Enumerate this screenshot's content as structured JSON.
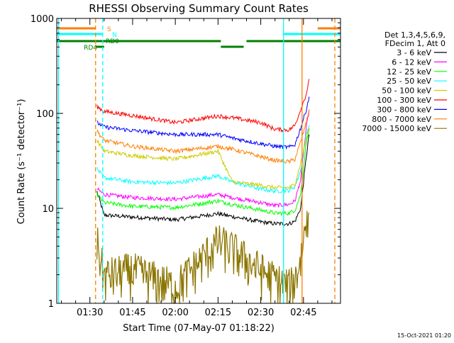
{
  "footer": {
    "date_stamp": "15-Oct-2021 01:20"
  },
  "chart_data": {
    "type": "line",
    "title": "RHESSI Observing Summary Count Rates",
    "xlabel": "Start Time (07-May-07 01:18:22)",
    "ylabel": "Count Rate (s⁻¹ detector⁻¹)",
    "y_scale": "log",
    "ylim": [
      1,
      1000
    ],
    "xlim": [
      "01:18:22",
      "02:58:00"
    ],
    "x_unit": "clock time (HH:MM)",
    "x_ticks": [
      "01:30",
      "01:45",
      "02:00",
      "02:15",
      "02:30",
      "02:45"
    ],
    "y_ticks": [
      1,
      10,
      100,
      1000
    ],
    "y_tick_labels": [
      "1",
      "10",
      "100",
      "1000"
    ],
    "grid": false,
    "legend_position": "right",
    "legend_header": [
      "Det 1,3,4,5,6,9,",
      "FDecim 1, Att 0"
    ],
    "series": [
      {
        "name": "3 - 6 keV",
        "color": "#000000",
        "x": [
          "01:32:30",
          "01:35",
          "01:45",
          "02:00",
          "02:15",
          "02:20",
          "02:30",
          "02:35",
          "02:40",
          "02:42",
          "02:44",
          "02:46",
          "02:47"
        ],
        "values": [
          15,
          8.5,
          8.1,
          7.6,
          8.8,
          8.2,
          7.2,
          6.9,
          6.9,
          7.3,
          10,
          35,
          60
        ]
      },
      {
        "name": "6 - 12 keV",
        "color": "#ff00ff",
        "x": [
          "01:32:30",
          "01:35",
          "01:45",
          "02:00",
          "02:15",
          "02:20",
          "02:30",
          "02:35",
          "02:40",
          "02:42",
          "02:44",
          "02:46",
          "02:47"
        ],
        "values": [
          16,
          14,
          13,
          12.5,
          14,
          13,
          11.5,
          10.7,
          11,
          12,
          20,
          70,
          110
        ]
      },
      {
        "name": "12 - 25 keV",
        "color": "#00ff00",
        "x": [
          "01:32:30",
          "01:35",
          "01:45",
          "02:00",
          "02:15",
          "02:20",
          "02:30",
          "02:35",
          "02:40",
          "02:42",
          "02:44",
          "02:46",
          "02:47"
        ],
        "values": [
          14,
          11.5,
          10.5,
          10.2,
          12,
          11,
          9.6,
          8.9,
          8.9,
          9.6,
          14,
          50,
          70
        ]
      },
      {
        "name": "25 - 50 keV",
        "color": "#00ffff",
        "x": [
          "01:32:30",
          "01:35",
          "01:45",
          "02:00",
          "02:15",
          "02:20",
          "02:30",
          "02:35",
          "02:40",
          "02:42",
          "02:44",
          "02:46",
          "02:47"
        ],
        "values": [
          26,
          21,
          19,
          18.5,
          22,
          19,
          16,
          15.2,
          15.5,
          17,
          25,
          60,
          75
        ]
      },
      {
        "name": "50 - 100 keV",
        "color": "#cccc00",
        "x": [
          "01:32:30",
          "01:35",
          "01:45",
          "02:00",
          "02:15",
          "02:20",
          "02:30",
          "02:35",
          "02:40",
          "02:42",
          "02:44",
          "02:46",
          "02:47"
        ],
        "values": [
          52,
          40,
          36,
          33,
          40,
          19,
          17.5,
          16.5,
          16.5,
          18,
          30,
          55,
          70
        ]
      },
      {
        "name": "100 - 300 keV",
        "color": "#ff0000",
        "x": [
          "01:32:30",
          "01:35",
          "01:45",
          "02:00",
          "02:15",
          "02:20",
          "02:30",
          "02:35",
          "02:40",
          "02:42",
          "02:44",
          "02:46",
          "02:47"
        ],
        "values": [
          118,
          105,
          95,
          80,
          94,
          90,
          80,
          68,
          67,
          75,
          110,
          160,
          230
        ]
      },
      {
        "name": "300 - 800 keV",
        "color": "#0000ff",
        "x": [
          "01:32:30",
          "01:35",
          "01:45",
          "02:00",
          "02:15",
          "02:20",
          "02:30",
          "02:35",
          "02:40",
          "02:42",
          "02:44",
          "02:46",
          "02:47"
        ],
        "values": [
          80,
          72,
          66,
          60,
          60,
          55,
          48,
          45,
          44,
          47,
          70,
          110,
          150
        ]
      },
      {
        "name": "800 - 7000 keV",
        "color": "#ff7f00",
        "x": [
          "01:32:30",
          "01:35",
          "01:45",
          "02:00",
          "02:15",
          "02:20",
          "02:30",
          "02:35",
          "02:40",
          "02:42",
          "02:44",
          "02:46",
          "02:47"
        ],
        "values": [
          65,
          52,
          45,
          40,
          45,
          42,
          35,
          32,
          31,
          33,
          50,
          80,
          110
        ]
      },
      {
        "name": "7000 - 15000 keV",
        "color": "#8b7500",
        "x": [
          "01:32:30",
          "01:35",
          "01:45",
          "02:00",
          "02:15",
          "02:20",
          "02:30",
          "02:35",
          "02:40",
          "02:42",
          "02:44",
          "02:46",
          "02:47"
        ],
        "values": [
          3,
          1.3,
          1.5,
          1,
          3,
          2.5,
          1.5,
          1.2,
          1,
          1.2,
          2,
          5,
          9
        ]
      }
    ],
    "vertical_markers": [
      {
        "x": "01:19:00",
        "color": "#00ffff",
        "style": "solid"
      },
      {
        "x": "01:32:00",
        "color": "#ff7f00",
        "style": "dashed"
      },
      {
        "x": "01:34:30",
        "color": "#00ffff",
        "style": "dashed"
      },
      {
        "x": "02:38:00",
        "color": "#00ffff",
        "style": "solid"
      },
      {
        "x": "02:44:30",
        "color": "#ff7f00",
        "style": "solid"
      },
      {
        "x": "02:56:00",
        "color": "#ff7f00",
        "style": "dashed"
      }
    ],
    "flag_bars": [
      {
        "label": "S",
        "color": "#ff7f00",
        "row": 1,
        "segments": [
          [
            "01:18:22",
            "01:32:00"
          ],
          [
            "02:50:00",
            "02:58:00"
          ]
        ]
      },
      {
        "label": "N",
        "color": "#00ffff",
        "row": 2,
        "segments": [
          [
            "01:18:22",
            "01:34:30"
          ],
          [
            "02:38:00",
            "02:58:00"
          ]
        ]
      },
      {
        "label": "RD0",
        "color": "#008000",
        "row": 3,
        "segments": [
          [
            "01:18:22",
            "02:16:00"
          ],
          [
            "02:25:00",
            "02:58:00"
          ]
        ]
      },
      {
        "label": "RD4",
        "color": "#008000",
        "row": 4,
        "segments": [
          [
            "01:32:00",
            "01:35:00"
          ],
          [
            "02:16:00",
            "02:24:00"
          ]
        ]
      }
    ]
  }
}
